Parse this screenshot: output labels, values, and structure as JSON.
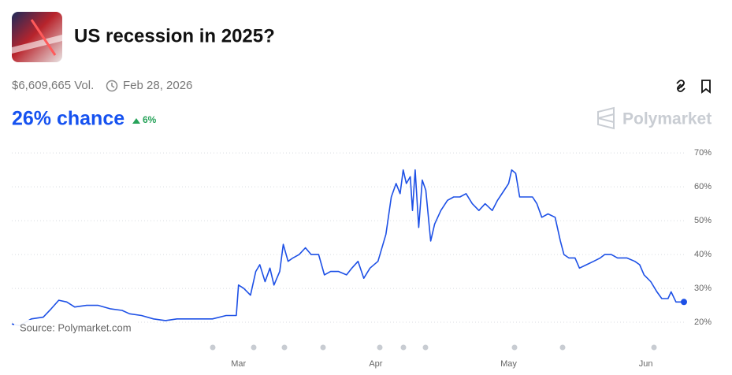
{
  "header": {
    "title": "US recession in 2025?",
    "volume": "$6,609,665 Vol.",
    "end_date": "Feb 28, 2026",
    "chance": "26% chance",
    "change": "6%",
    "brand": "Polymarket"
  },
  "chart_data": {
    "type": "line",
    "source": "Source: Polymarket.com",
    "color": "#1d50e6",
    "x": [
      7.8,
      9.5,
      12.2,
      14.9,
      16.7,
      18.4,
      20.2,
      22.0,
      24.7,
      27.3,
      30.0,
      32.7,
      34.4,
      37.1,
      39.8,
      42.5,
      45.1,
      49.6,
      53.1,
      56.2,
      58.5,
      59,
      60.2,
      61.7,
      62.9,
      63.8,
      65.0,
      66.1,
      67.0,
      68.3,
      69.1,
      70.2,
      71.3,
      72.7,
      74.1,
      75.4,
      77.1,
      78.4,
      79.8,
      81.6,
      83.4,
      84.6,
      86.0,
      87.3,
      88.7,
      90.5,
      92.3,
      93.5,
      94.6,
      95.5,
      96.2,
      96.9,
      97.8,
      98.3,
      98.9,
      99.7,
      100.5,
      101.3,
      102.4,
      103.3,
      104.7,
      106.2,
      107.6,
      109.0,
      110.4,
      111.8,
      113.3,
      114.7,
      116.3,
      117.5,
      119.0,
      120.0,
      120.7,
      121.6,
      122.5,
      123.9,
      125.4,
      126.4,
      127.5,
      128.9,
      130.5,
      131.7,
      132.5,
      133.6,
      135.0,
      136.0,
      137.6,
      139.2,
      140.7,
      141.7,
      143.2,
      144.6,
      146.7,
      148.5,
      149.6,
      150.6,
      152.1,
      153.5,
      154.6,
      156.0,
      156.7,
      157.8,
      159.6
    ],
    "values": [
      19.5,
      19,
      21,
      21.5,
      24,
      26.5,
      26,
      24.5,
      25,
      25,
      24,
      23.5,
      22.5,
      22,
      21,
      20.5,
      21,
      21,
      21,
      22,
      22,
      31,
      30,
      28,
      35,
      37,
      32,
      36,
      31,
      35,
      43,
      38,
      39,
      40,
      42,
      40,
      40,
      34,
      35,
      35,
      34,
      36,
      38,
      33,
      36,
      38,
      46,
      57,
      61,
      58,
      65,
      61,
      63,
      53,
      65,
      48,
      62,
      59,
      44,
      49,
      53,
      56,
      57,
      57,
      58,
      55,
      53,
      55,
      53,
      56,
      59,
      61,
      65,
      64,
      57,
      57,
      57,
      55,
      51,
      52,
      51,
      44,
      40,
      39,
      39,
      36,
      37,
      38,
      39,
      40,
      40,
      39,
      39,
      38,
      37,
      34,
      32,
      29,
      27,
      27,
      29,
      26,
      26
    ],
    "xlim": [
      7.8,
      159.6
    ],
    "xticks": [
      {
        "value": 59,
        "label": "Mar"
      },
      {
        "value": 90,
        "label": "Apr"
      },
      {
        "value": 120,
        "label": "May"
      },
      {
        "value": 151,
        "label": "Jun"
      }
    ],
    "ylim": [
      12.8,
      73.3
    ],
    "yticks": [
      {
        "value": 20,
        "label": "20%"
      },
      {
        "value": 30,
        "label": "30%"
      },
      {
        "value": 40,
        "label": "40%"
      },
      {
        "value": 50,
        "label": "50%"
      },
      {
        "value": 60,
        "label": "60%"
      },
      {
        "value": 70,
        "label": "70%"
      }
    ],
    "grid": true
  }
}
